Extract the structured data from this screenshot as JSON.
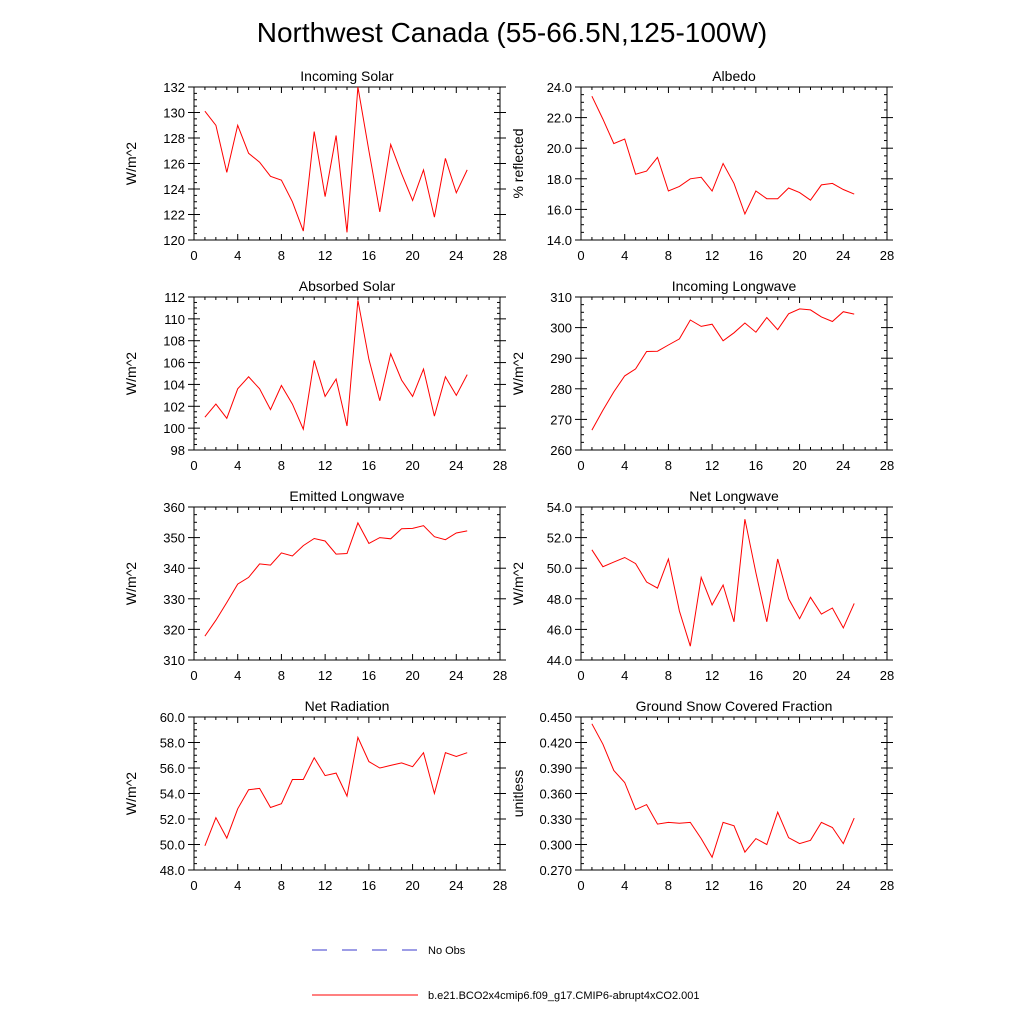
{
  "figure": {
    "title": "Northwest Canada (55-66.5N,125-100W)",
    "legend": [
      {
        "label": "No Obs",
        "color": "#3b3bcc",
        "style": "dashed"
      },
      {
        "label": "b.e21.BCO2x4cmip6.f09_g17.CMIP6-abrupt4xCO2.001",
        "color": "#ff0000",
        "style": "solid"
      }
    ]
  },
  "chart_data": [
    {
      "type": "line",
      "title": "Incoming Solar",
      "ylabel": "W/m^2",
      "xlim": [
        0,
        28
      ],
      "ylim": [
        120,
        132
      ],
      "xticks": [
        "0",
        "4",
        "8",
        "12",
        "16",
        "20",
        "24",
        "28"
      ],
      "yticks": [
        "120",
        "122",
        "124",
        "126",
        "128",
        "130",
        "132"
      ],
      "x": [
        1,
        2,
        3,
        4,
        5,
        6,
        7,
        8,
        9,
        10,
        11,
        12,
        13,
        14,
        15,
        16,
        17,
        18,
        19,
        20,
        21,
        22,
        23,
        24,
        25
      ],
      "series": [
        {
          "color": "#ff0000",
          "values": [
            130.1,
            129.0,
            125.3,
            129.0,
            126.8,
            126.1,
            125.0,
            124.7,
            123.0,
            120.7,
            128.5,
            123.4,
            128.2,
            120.6,
            132.0,
            127.0,
            122.2,
            127.5,
            125.2,
            123.1,
            125.5,
            121.8,
            126.4,
            123.7,
            125.5
          ]
        }
      ]
    },
    {
      "type": "line",
      "title": "Albedo",
      "ylabel": "% reflected",
      "xlim": [
        0,
        28
      ],
      "ylim": [
        14,
        24
      ],
      "xticks": [
        "0",
        "4",
        "8",
        "12",
        "16",
        "20",
        "24",
        "28"
      ],
      "yticks": [
        "14.0",
        "16.0",
        "18.0",
        "20.0",
        "22.0",
        "24.0"
      ],
      "x": [
        1,
        2,
        3,
        4,
        5,
        6,
        7,
        8,
        9,
        10,
        11,
        12,
        13,
        14,
        15,
        16,
        17,
        18,
        19,
        20,
        21,
        22,
        23,
        24,
        25
      ],
      "series": [
        {
          "color": "#ff0000",
          "values": [
            23.4,
            21.9,
            20.3,
            20.6,
            18.3,
            18.5,
            19.4,
            17.2,
            17.5,
            18.0,
            18.1,
            17.2,
            19.0,
            17.7,
            15.7,
            17.2,
            16.7,
            16.7,
            17.4,
            17.1,
            16.6,
            17.6,
            17.7,
            17.3,
            17.0
          ]
        }
      ]
    },
    {
      "type": "line",
      "title": "Absorbed Solar",
      "ylabel": "W/m^2",
      "xlim": [
        0,
        28
      ],
      "ylim": [
        98,
        112
      ],
      "xticks": [
        "0",
        "4",
        "8",
        "12",
        "16",
        "20",
        "24",
        "28"
      ],
      "yticks": [
        "98",
        "100",
        "102",
        "104",
        "106",
        "108",
        "110",
        "112"
      ],
      "x": [
        1,
        2,
        3,
        4,
        5,
        6,
        7,
        8,
        9,
        10,
        11,
        12,
        13,
        14,
        15,
        16,
        17,
        18,
        19,
        20,
        21,
        22,
        23,
        24,
        25
      ],
      "series": [
        {
          "color": "#ff0000",
          "values": [
            101.0,
            102.2,
            100.9,
            103.6,
            104.7,
            103.6,
            101.7,
            103.9,
            102.2,
            99.9,
            106.2,
            102.9,
            104.5,
            100.2,
            111.7,
            106.3,
            102.5,
            106.8,
            104.4,
            102.9,
            105.4,
            101.1,
            104.7,
            103.0,
            104.9
          ]
        }
      ]
    },
    {
      "type": "line",
      "title": "Incoming Longwave",
      "ylabel": "W/m^2",
      "xlim": [
        0,
        28
      ],
      "ylim": [
        260,
        310
      ],
      "xticks": [
        "0",
        "4",
        "8",
        "12",
        "16",
        "20",
        "24",
        "28"
      ],
      "yticks": [
        "260",
        "270",
        "280",
        "290",
        "300",
        "310"
      ],
      "x": [
        1,
        2,
        3,
        4,
        5,
        6,
        7,
        8,
        9,
        10,
        11,
        12,
        13,
        14,
        15,
        16,
        17,
        18,
        19,
        20,
        21,
        22,
        23,
        24,
        25
      ],
      "series": [
        {
          "color": "#ff0000",
          "values": [
            266.5,
            273.0,
            279.0,
            284.2,
            286.5,
            292.2,
            292.3,
            294.3,
            296.3,
            302.5,
            300.4,
            301.1,
            295.7,
            298.3,
            301.5,
            298.5,
            303.3,
            299.3,
            304.5,
            306.1,
            305.8,
            303.5,
            302.0,
            305.2,
            304.4
          ]
        }
      ]
    },
    {
      "type": "line",
      "title": "Emitted Longwave",
      "ylabel": "W/m^2",
      "xlim": [
        0,
        28
      ],
      "ylim": [
        310,
        360
      ],
      "xticks": [
        "0",
        "4",
        "8",
        "12",
        "16",
        "20",
        "24",
        "28"
      ],
      "yticks": [
        "310",
        "320",
        "330",
        "340",
        "350",
        "360"
      ],
      "x": [
        1,
        2,
        3,
        4,
        5,
        6,
        7,
        8,
        9,
        10,
        11,
        12,
        13,
        14,
        15,
        16,
        17,
        18,
        19,
        20,
        21,
        22,
        23,
        24,
        25
      ],
      "series": [
        {
          "color": "#ff0000",
          "values": [
            317.8,
            323.0,
            328.8,
            334.8,
            337.0,
            341.4,
            341.0,
            345.0,
            344.0,
            347.4,
            349.7,
            348.9,
            344.6,
            344.8,
            354.8,
            348.1,
            350.0,
            349.6,
            352.9,
            353.0,
            353.9,
            350.3,
            349.3,
            351.5,
            352.2
          ]
        }
      ]
    },
    {
      "type": "line",
      "title": "Net Longwave",
      "ylabel": "W/m^2",
      "xlim": [
        0,
        28
      ],
      "ylim": [
        44,
        54
      ],
      "xticks": [
        "0",
        "4",
        "8",
        "12",
        "16",
        "20",
        "24",
        "28"
      ],
      "yticks": [
        "44.0",
        "46.0",
        "48.0",
        "50.0",
        "52.0",
        "54.0"
      ],
      "x": [
        1,
        2,
        3,
        4,
        5,
        6,
        7,
        8,
        9,
        10,
        11,
        12,
        13,
        14,
        15,
        16,
        17,
        18,
        19,
        20,
        21,
        22,
        23,
        24,
        25
      ],
      "series": [
        {
          "color": "#ff0000",
          "values": [
            51.2,
            50.1,
            50.4,
            50.7,
            50.3,
            49.1,
            48.7,
            50.6,
            47.2,
            44.9,
            49.4,
            47.6,
            48.9,
            46.5,
            53.2,
            49.7,
            46.5,
            50.6,
            48.0,
            46.7,
            48.1,
            47.0,
            47.4,
            46.1,
            47.7
          ]
        }
      ]
    },
    {
      "type": "line",
      "title": "Net Radiation",
      "ylabel": "W/m^2",
      "xlim": [
        0,
        28
      ],
      "ylim": [
        48,
        60
      ],
      "xticks": [
        "0",
        "4",
        "8",
        "12",
        "16",
        "20",
        "24",
        "28"
      ],
      "yticks": [
        "48.0",
        "50.0",
        "52.0",
        "54.0",
        "56.0",
        "58.0",
        "60.0"
      ],
      "x": [
        1,
        2,
        3,
        4,
        5,
        6,
        7,
        8,
        9,
        10,
        11,
        12,
        13,
        14,
        15,
        16,
        17,
        18,
        19,
        20,
        21,
        22,
        23,
        24,
        25
      ],
      "series": [
        {
          "color": "#ff0000",
          "values": [
            49.9,
            52.1,
            50.5,
            52.8,
            54.3,
            54.4,
            52.9,
            53.2,
            55.1,
            55.1,
            56.8,
            55.4,
            55.6,
            53.8,
            58.4,
            56.5,
            56.0,
            56.2,
            56.4,
            56.1,
            57.2,
            54.0,
            57.2,
            56.9,
            57.2
          ]
        }
      ]
    },
    {
      "type": "line",
      "title": "Ground Snow Covered Fraction",
      "ylabel": "unitless",
      "xlim": [
        0,
        28
      ],
      "ylim": [
        0.27,
        0.45
      ],
      "xticks": [
        "0",
        "4",
        "8",
        "12",
        "16",
        "20",
        "24",
        "28"
      ],
      "yticks": [
        "0.270",
        "0.300",
        "0.330",
        "0.360",
        "0.390",
        "0.420",
        "0.450"
      ],
      "x": [
        1,
        2,
        3,
        4,
        5,
        6,
        7,
        8,
        9,
        10,
        11,
        12,
        13,
        14,
        15,
        16,
        17,
        18,
        19,
        20,
        21,
        22,
        23,
        24,
        25
      ],
      "series": [
        {
          "color": "#ff0000",
          "values": [
            0.442,
            0.418,
            0.387,
            0.373,
            0.341,
            0.347,
            0.324,
            0.326,
            0.325,
            0.326,
            0.307,
            0.285,
            0.326,
            0.322,
            0.291,
            0.307,
            0.3,
            0.338,
            0.308,
            0.301,
            0.305,
            0.326,
            0.32,
            0.301,
            0.331
          ]
        }
      ]
    }
  ]
}
